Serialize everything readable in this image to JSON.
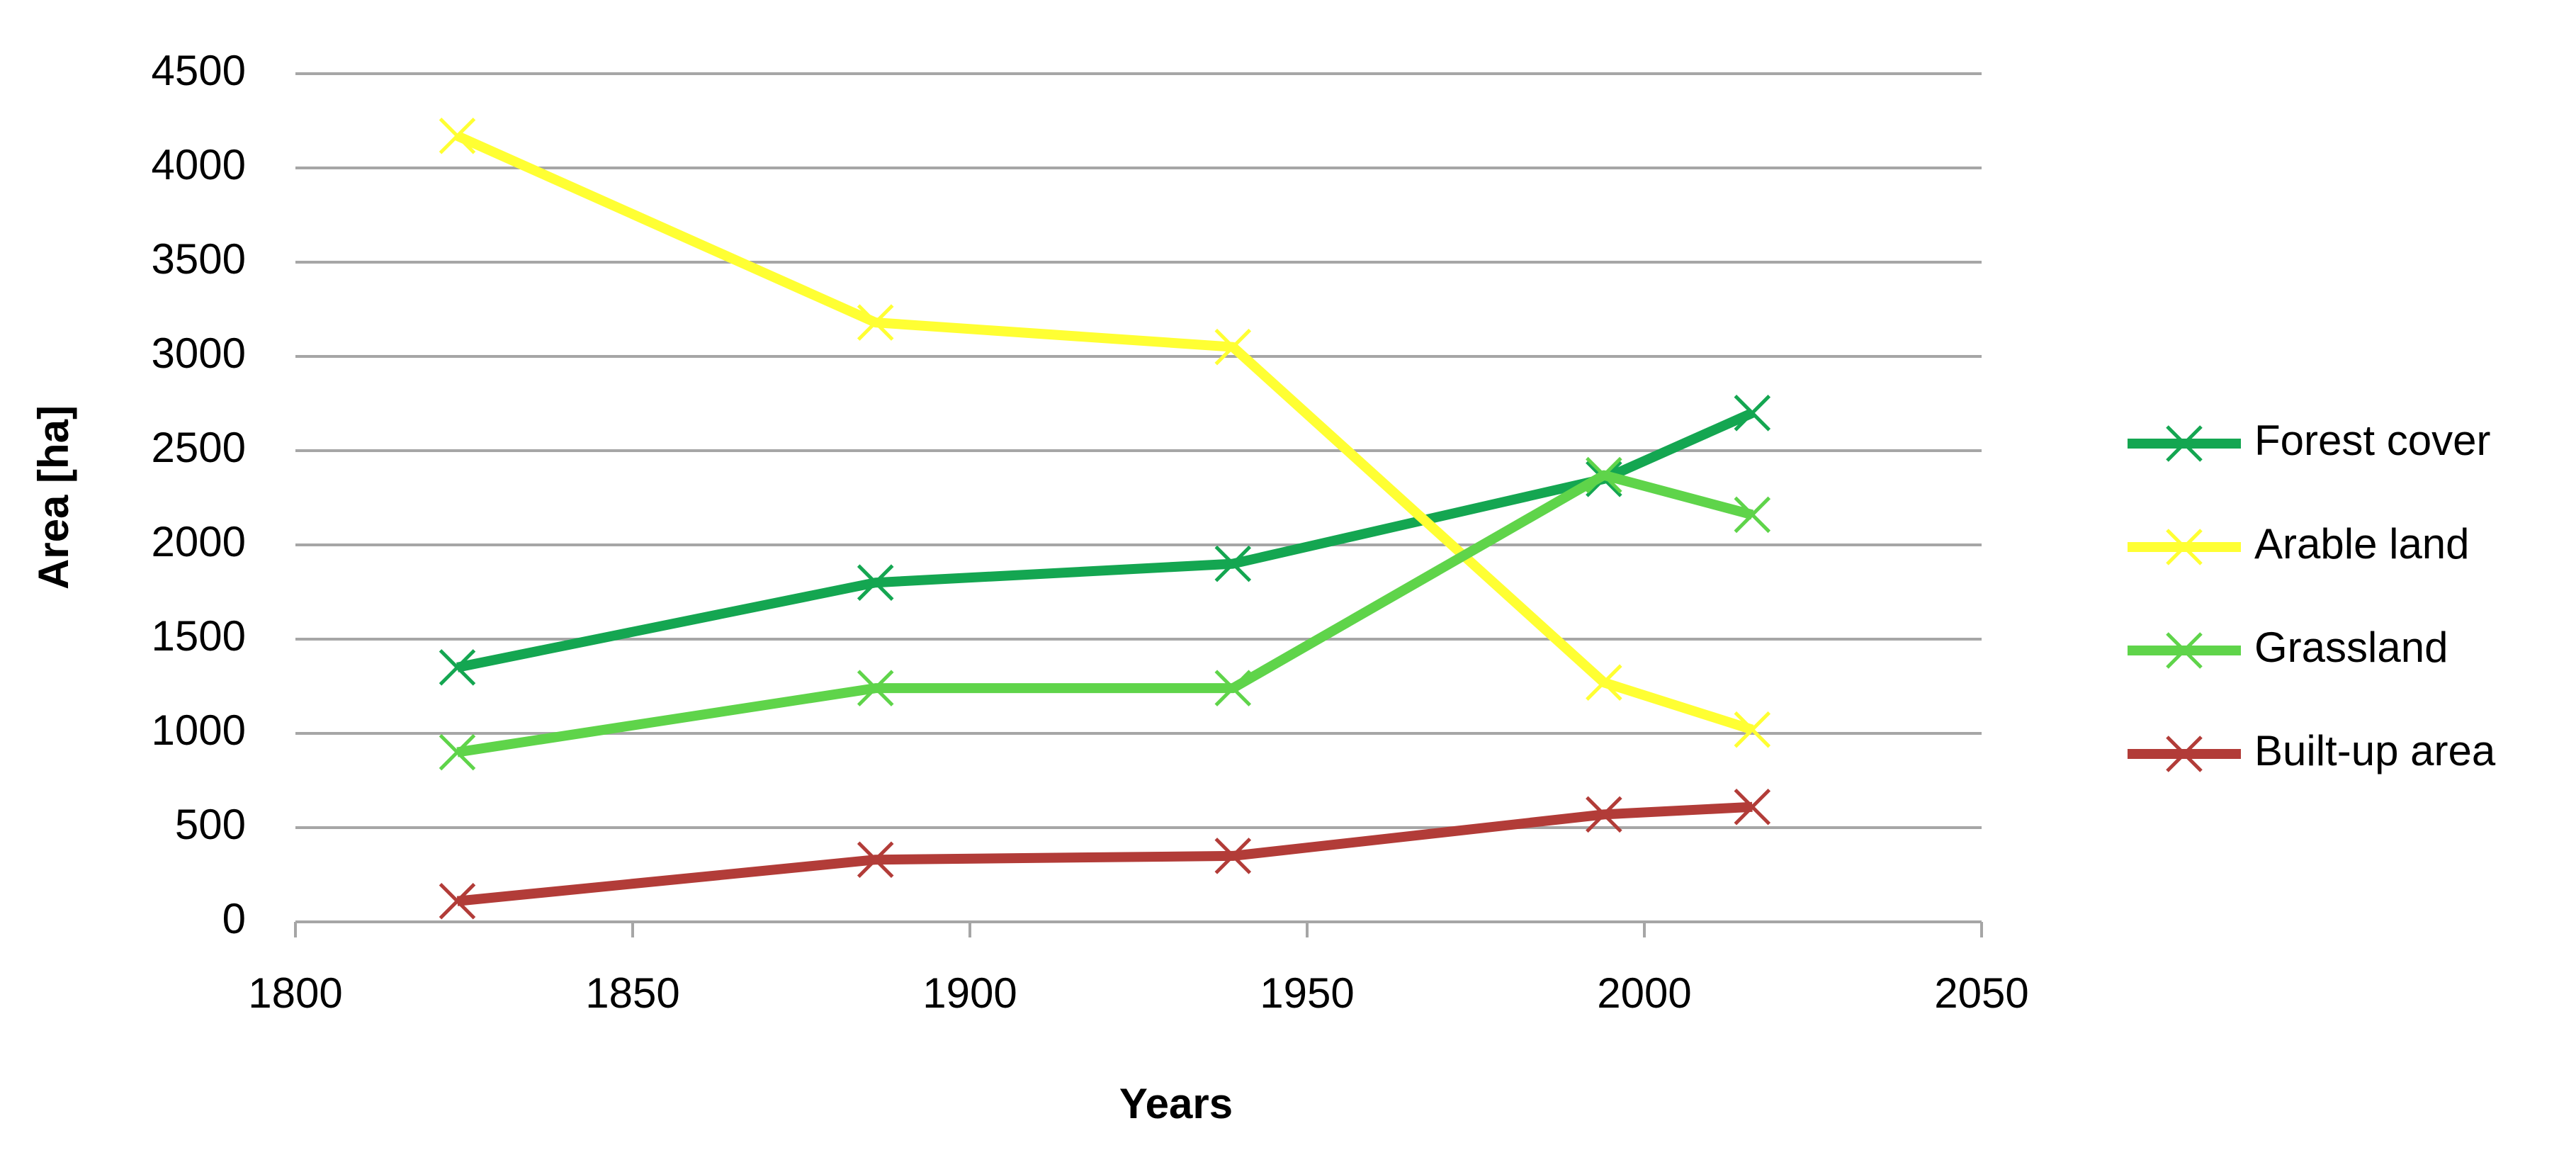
{
  "chart_data": {
    "type": "line",
    "x_label": "Years",
    "y_label": "Area [ha]",
    "x": [
      1824,
      1886,
      1939,
      1994,
      2016
    ],
    "series": [
      {
        "name": "Forest cover",
        "color": "#14a651",
        "values": [
          1350,
          1800,
          1900,
          2350,
          2700
        ]
      },
      {
        "name": "Arable land",
        "color": "#ffff33",
        "values": [
          4170,
          3180,
          3050,
          1270,
          1020
        ]
      },
      {
        "name": "Grassland",
        "color": "#5fd44a",
        "values": [
          900,
          1240,
          1240,
          2370,
          2160
        ]
      },
      {
        "name": "Built-up area",
        "color": "#b23c38",
        "values": [
          110,
          330,
          350,
          570,
          610
        ]
      }
    ],
    "xlim": [
      1800,
      2050
    ],
    "xticks": [
      1800,
      1850,
      1900,
      1950,
      2000,
      2050
    ],
    "ylim": [
      0,
      4500
    ],
    "yticks": [
      0,
      500,
      1000,
      1500,
      2000,
      2500,
      3000,
      3500,
      4000,
      4500
    ],
    "grid": true,
    "legend": "right"
  }
}
